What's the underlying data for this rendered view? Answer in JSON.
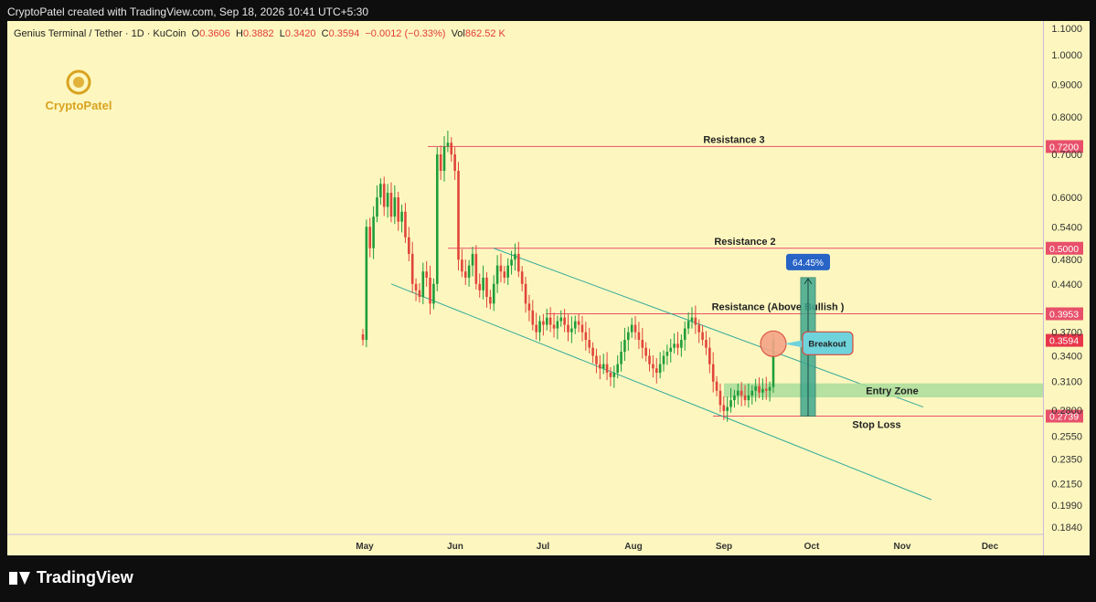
{
  "header": {
    "attribution": "CryptoPatel created with TradingView.com, Sep 18, 2026 10:41 UTC+5:30"
  },
  "symbol": {
    "name": "Genius Terminal / Tether · 1D · KuCoin",
    "o_label": "O",
    "o_value": "0.3606",
    "h_label": "H",
    "h_value": "0.3882",
    "l_label": "L",
    "l_value": "0.3420",
    "c_label": "C",
    "c_value": "0.3594",
    "change": "−0.0012 (−0.33%)",
    "vol_label": "Vol",
    "vol_value": "862.52 K"
  },
  "logo": {
    "text": "CryptoPatel"
  },
  "footer": {
    "brand": "TradingView"
  },
  "colors": {
    "background": "#fdf7bf",
    "up": "#1f9d3a",
    "down": "#e0463a",
    "resistance_line": "#e8506a",
    "channel": "#35a89a",
    "entry_zone": "#a9dd9a",
    "breakout_box": "#6fd3dc",
    "target_box": "#3fa88e",
    "percent_badge": "#2863c6"
  },
  "chart_data": {
    "type": "candlestick",
    "scale": "log",
    "ylim": [
      0.18,
      1.12
    ],
    "x_months": [
      "May",
      "Jun",
      "Jul",
      "Aug",
      "Sep",
      "Oct",
      "Nov",
      "Dec"
    ],
    "y_ticks": [
      "1.1000",
      "1.0000",
      "0.9000",
      "0.8000",
      "0.7000",
      "0.6000",
      "0.5400",
      "0.4800",
      "0.4400",
      "0.3700",
      "0.3400",
      "0.3100",
      "0.2800",
      "0.2550",
      "0.2350",
      "0.2150",
      "0.1990",
      "0.1840"
    ],
    "price_labels": [
      {
        "value": "0.7200",
        "color": "#e8506a"
      },
      {
        "value": "0.5000",
        "color": "#e8506a"
      },
      {
        "value": "0.3953",
        "color": "#e8506a"
      },
      {
        "value": "0.3594",
        "color": "#e8364a"
      },
      {
        "value": "0.2739",
        "color": "#e8506a"
      }
    ],
    "levels": [
      {
        "name": "Resistance 3",
        "price": 0.72
      },
      {
        "name": "Resistance 2",
        "price": 0.5
      },
      {
        "name": "Resistance (Above Bullish )",
        "price": 0.3953
      },
      {
        "name": "Stop Loss",
        "price": 0.2739
      }
    ],
    "entry_zone": {
      "label": "Entry Zone",
      "low": 0.293,
      "high": 0.308
    },
    "breakout_label": "Breakout",
    "target_percent": "64.45%",
    "target": {
      "from": 0.2739,
      "to": 0.45
    },
    "closes": [
      0.36,
      0.54,
      0.5,
      0.56,
      0.6,
      0.63,
      0.58,
      0.61,
      0.56,
      0.6,
      0.55,
      0.57,
      0.52,
      0.49,
      0.44,
      0.43,
      0.42,
      0.46,
      0.45,
      0.41,
      0.44,
      0.7,
      0.66,
      0.72,
      0.73,
      0.7,
      0.66,
      0.48,
      0.46,
      0.45,
      0.47,
      0.49,
      0.44,
      0.43,
      0.45,
      0.42,
      0.41,
      0.44,
      0.47,
      0.46,
      0.45,
      0.47,
      0.48,
      0.49,
      0.46,
      0.44,
      0.41,
      0.4,
      0.38,
      0.37,
      0.385,
      0.38,
      0.39,
      0.38,
      0.375,
      0.385,
      0.39,
      0.38,
      0.37,
      0.375,
      0.385,
      0.38,
      0.37,
      0.36,
      0.35,
      0.34,
      0.33,
      0.325,
      0.33,
      0.32,
      0.315,
      0.32,
      0.33,
      0.345,
      0.36,
      0.37,
      0.38,
      0.37,
      0.36,
      0.35,
      0.34,
      0.33,
      0.325,
      0.32,
      0.33,
      0.34,
      0.345,
      0.35,
      0.355,
      0.35,
      0.36,
      0.375,
      0.385,
      0.39,
      0.38,
      0.37,
      0.36,
      0.35,
      0.33,
      0.31,
      0.3,
      0.285,
      0.279,
      0.283,
      0.29,
      0.295,
      0.3,
      0.295,
      0.29,
      0.295,
      0.3,
      0.305,
      0.298,
      0.302,
      0.3,
      0.304,
      0.3594
    ]
  }
}
